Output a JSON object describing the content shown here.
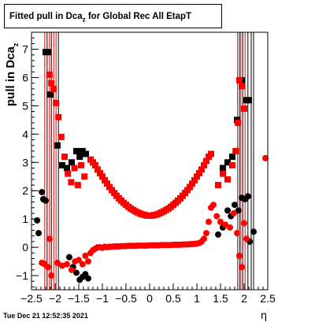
{
  "title": {
    "prefix": "Fitted pull in Dca",
    "subscript": "z",
    "suffix": " for Global Rec All EtapT"
  },
  "timestamp": "Tue Dec 21 12:52:35 2021",
  "colors": {
    "black_series": "#000000",
    "red_series": "#ff0000",
    "errorbar_red": "#ff0000",
    "errorbar_black": "#000000",
    "axis": "#000000"
  },
  "chart_data": {
    "type": "scatter",
    "title": "Fitted pull in Dca_z for Global Rec All EtapT",
    "xlabel": "η",
    "ylabel": "pull in Dca_z",
    "xlim": [
      -2.5,
      2.5
    ],
    "ylim": [
      -1.5,
      7.6
    ],
    "grid": false,
    "legend": "none",
    "x_ticks": [
      "−2.5",
      "−2",
      "−1.5",
      "−1",
      "−0.5",
      "0",
      "0.5",
      "1",
      "1.5",
      "2",
      "2.5"
    ],
    "y_ticks": [
      "−1",
      "0",
      "1",
      "2",
      "3",
      "4",
      "5",
      "6",
      "7"
    ],
    "series": [
      {
        "marker": "square",
        "color": "#000000",
        "points": [
          {
            "x": -2.2,
            "y": 6.9
          },
          {
            "x": -2.15,
            "y": 6.9
          },
          {
            "x": -2.1,
            "y": 5.4
          },
          {
            "x": -1.95,
            "y": 3.6
          },
          {
            "x": -1.85,
            "y": 2.9
          },
          {
            "x": -1.75,
            "y": 2.8
          },
          {
            "x": -1.65,
            "y": 3.0
          },
          {
            "x": -1.55,
            "y": 3.4
          },
          {
            "x": -1.48,
            "y": 3.2
          },
          {
            "x": -1.42,
            "y": 3.4
          },
          {
            "x": -1.35,
            "y": 3.3
          },
          {
            "x": 1.55,
            "y": 2.8
          },
          {
            "x": 1.65,
            "y": 3.0
          },
          {
            "x": 1.75,
            "y": 3.2
          },
          {
            "x": 1.85,
            "y": 4.5
          },
          {
            "x": 1.95,
            "y": 5.9
          },
          {
            "x": 2.05,
            "y": 5.2
          },
          {
            "x": 2.1,
            "y": 5.2
          }
        ]
      },
      {
        "marker": "square",
        "color": "#ff0000",
        "points": [
          {
            "x": -2.12,
            "y": 6.1
          },
          {
            "x": -2.08,
            "y": 5.8
          },
          {
            "x": -2.03,
            "y": 5.6
          },
          {
            "x": -1.98,
            "y": 5.1
          },
          {
            "x": -1.93,
            "y": 4.6
          },
          {
            "x": -1.87,
            "y": 3.9
          },
          {
            "x": -1.8,
            "y": 3.2
          },
          {
            "x": -1.73,
            "y": 2.6
          },
          {
            "x": -1.66,
            "y": 2.3
          },
          {
            "x": -1.59,
            "y": 2.8
          },
          {
            "x": -1.52,
            "y": 2.2
          },
          {
            "x": -1.45,
            "y": 2.9
          },
          {
            "x": -1.38,
            "y": 2.5
          },
          {
            "x": -1.25,
            "y": 3.1
          },
          {
            "x": -1.2,
            "y": 3.0
          },
          {
            "x": -1.15,
            "y": 2.9
          },
          {
            "x": -1.1,
            "y": 2.75
          },
          {
            "x": -1.05,
            "y": 2.62
          },
          {
            "x": -1.0,
            "y": 2.5
          },
          {
            "x": -0.95,
            "y": 2.37
          },
          {
            "x": -0.9,
            "y": 2.25
          },
          {
            "x": -0.85,
            "y": 2.13
          },
          {
            "x": -0.8,
            "y": 2.02
          },
          {
            "x": -0.75,
            "y": 1.92
          },
          {
            "x": -0.7,
            "y": 1.82
          },
          {
            "x": -0.65,
            "y": 1.73
          },
          {
            "x": -0.6,
            "y": 1.65
          },
          {
            "x": -0.55,
            "y": 1.57
          },
          {
            "x": -0.5,
            "y": 1.5
          },
          {
            "x": -0.45,
            "y": 1.43
          },
          {
            "x": -0.4,
            "y": 1.37
          },
          {
            "x": -0.35,
            "y": 1.32
          },
          {
            "x": -0.3,
            "y": 1.27
          },
          {
            "x": -0.25,
            "y": 1.23
          },
          {
            "x": -0.2,
            "y": 1.19
          },
          {
            "x": -0.15,
            "y": 1.16
          },
          {
            "x": -0.1,
            "y": 1.14
          },
          {
            "x": -0.05,
            "y": 1.12
          },
          {
            "x": 0.0,
            "y": 1.12
          },
          {
            "x": 0.05,
            "y": 1.12
          },
          {
            "x": 0.1,
            "y": 1.14
          },
          {
            "x": 0.15,
            "y": 1.16
          },
          {
            "x": 0.2,
            "y": 1.19
          },
          {
            "x": 0.25,
            "y": 1.23
          },
          {
            "x": 0.3,
            "y": 1.27
          },
          {
            "x": 0.35,
            "y": 1.32
          },
          {
            "x": 0.4,
            "y": 1.37
          },
          {
            "x": 0.45,
            "y": 1.43
          },
          {
            "x": 0.5,
            "y": 1.5
          },
          {
            "x": 0.55,
            "y": 1.57
          },
          {
            "x": 0.6,
            "y": 1.65
          },
          {
            "x": 0.65,
            "y": 1.73
          },
          {
            "x": 0.7,
            "y": 1.82
          },
          {
            "x": 0.75,
            "y": 1.92
          },
          {
            "x": 0.8,
            "y": 2.02
          },
          {
            "x": 0.85,
            "y": 2.13
          },
          {
            "x": 0.9,
            "y": 2.25
          },
          {
            "x": 0.95,
            "y": 2.37
          },
          {
            "x": 1.0,
            "y": 2.5
          },
          {
            "x": 1.05,
            "y": 2.62
          },
          {
            "x": 1.1,
            "y": 2.75
          },
          {
            "x": 1.15,
            "y": 2.9
          },
          {
            "x": 1.2,
            "y": 3.05
          },
          {
            "x": 1.25,
            "y": 3.2
          },
          {
            "x": 1.3,
            "y": 3.3
          },
          {
            "x": 1.45,
            "y": 2.2
          },
          {
            "x": 1.55,
            "y": 2.6
          },
          {
            "x": 1.65,
            "y": 2.4
          },
          {
            "x": 1.75,
            "y": 2.9
          },
          {
            "x": 1.82,
            "y": 3.4
          },
          {
            "x": 1.87,
            "y": 4.4
          },
          {
            "x": 1.9,
            "y": 5.9
          },
          {
            "x": 1.95,
            "y": 5.7
          },
          {
            "x": 2.0,
            "y": 4.9
          }
        ]
      },
      {
        "marker": "circle",
        "color": "#000000",
        "points": [
          {
            "x": -2.38,
            "y": 0.95
          },
          {
            "x": -2.35,
            "y": 0.5
          },
          {
            "x": -2.28,
            "y": 1.95
          },
          {
            "x": -2.25,
            "y": 1.7
          },
          {
            "x": -2.2,
            "y": 1.65
          },
          {
            "x": -1.7,
            "y": -0.35
          },
          {
            "x": -1.62,
            "y": -0.7
          },
          {
            "x": -1.55,
            "y": -0.9
          },
          {
            "x": -1.48,
            "y": -1.15
          },
          {
            "x": -1.42,
            "y": -1.05
          },
          {
            "x": -1.36,
            "y": -0.95
          },
          {
            "x": -1.3,
            "y": -1.1
          },
          {
            "x": 1.45,
            "y": 0.45
          },
          {
            "x": 1.55,
            "y": 0.7
          },
          {
            "x": 1.65,
            "y": 1.3
          },
          {
            "x": 1.72,
            "y": 1.1
          },
          {
            "x": 1.8,
            "y": 1.5
          },
          {
            "x": 1.88,
            "y": 1.3
          },
          {
            "x": 1.95,
            "y": 1.75
          },
          {
            "x": 2.02,
            "y": 1.7
          },
          {
            "x": 2.08,
            "y": 1.8
          },
          {
            "x": 2.12,
            "y": 0.2
          },
          {
            "x": 2.2,
            "y": 0.55
          }
        ]
      },
      {
        "marker": "circle",
        "color": "#ff0000",
        "points": [
          {
            "x": -2.28,
            "y": -0.55
          },
          {
            "x": -2.22,
            "y": -0.6
          },
          {
            "x": -2.15,
            "y": -0.7
          },
          {
            "x": -2.08,
            "y": -1.0
          },
          {
            "x": -2.12,
            "y": 0.3
          },
          {
            "x": -1.95,
            "y": -0.55
          },
          {
            "x": -1.85,
            "y": -0.65
          },
          {
            "x": -1.75,
            "y": -0.6
          },
          {
            "x": -1.65,
            "y": -0.8
          },
          {
            "x": -1.58,
            "y": -0.5
          },
          {
            "x": -1.5,
            "y": -0.45
          },
          {
            "x": -1.42,
            "y": -0.6
          },
          {
            "x": -1.36,
            "y": -0.3
          },
          {
            "x": -1.3,
            "y": -0.5
          },
          {
            "x": -1.25,
            "y": -0.2
          },
          {
            "x": -1.2,
            "y": -0.1
          },
          {
            "x": -1.15,
            "y": -0.05
          },
          {
            "x": -1.1,
            "y": 0.0
          },
          {
            "x": -1.05,
            "y": 0.0
          },
          {
            "x": -1.0,
            "y": -0.02
          },
          {
            "x": -0.95,
            "y": 0.02
          },
          {
            "x": -0.9,
            "y": 0.0
          },
          {
            "x": -0.85,
            "y": 0.02
          },
          {
            "x": -0.8,
            "y": 0.02
          },
          {
            "x": -0.75,
            "y": 0.03
          },
          {
            "x": -0.7,
            "y": 0.03
          },
          {
            "x": -0.65,
            "y": 0.03
          },
          {
            "x": -0.6,
            "y": 0.04
          },
          {
            "x": -0.55,
            "y": 0.04
          },
          {
            "x": -0.5,
            "y": 0.04
          },
          {
            "x": -0.45,
            "y": 0.05
          },
          {
            "x": -0.4,
            "y": 0.05
          },
          {
            "x": -0.35,
            "y": 0.05
          },
          {
            "x": -0.3,
            "y": 0.05
          },
          {
            "x": -0.25,
            "y": 0.06
          },
          {
            "x": -0.2,
            "y": 0.06
          },
          {
            "x": -0.15,
            "y": 0.06
          },
          {
            "x": -0.1,
            "y": 0.06
          },
          {
            "x": -0.05,
            "y": 0.06
          },
          {
            "x": 0.0,
            "y": 0.07
          },
          {
            "x": 0.05,
            "y": 0.07
          },
          {
            "x": 0.1,
            "y": 0.07
          },
          {
            "x": 0.15,
            "y": 0.07
          },
          {
            "x": 0.2,
            "y": 0.07
          },
          {
            "x": 0.25,
            "y": 0.08
          },
          {
            "x": 0.3,
            "y": 0.08
          },
          {
            "x": 0.35,
            "y": 0.08
          },
          {
            "x": 0.4,
            "y": 0.08
          },
          {
            "x": 0.45,
            "y": 0.08
          },
          {
            "x": 0.5,
            "y": 0.09
          },
          {
            "x": 0.55,
            "y": 0.09
          },
          {
            "x": 0.6,
            "y": 0.09
          },
          {
            "x": 0.65,
            "y": 0.09
          },
          {
            "x": 0.7,
            "y": 0.1
          },
          {
            "x": 0.75,
            "y": 0.1
          },
          {
            "x": 0.8,
            "y": 0.1
          },
          {
            "x": 0.85,
            "y": 0.11
          },
          {
            "x": 0.9,
            "y": 0.11
          },
          {
            "x": 0.95,
            "y": 0.12
          },
          {
            "x": 1.0,
            "y": 0.13
          },
          {
            "x": 1.05,
            "y": 0.15
          },
          {
            "x": 1.1,
            "y": 0.2
          },
          {
            "x": 1.15,
            "y": 0.3
          },
          {
            "x": 1.2,
            "y": 0.5
          },
          {
            "x": 1.25,
            "y": 0.9
          },
          {
            "x": 1.3,
            "y": 1.4
          },
          {
            "x": 1.35,
            "y": 1.5
          },
          {
            "x": 1.42,
            "y": 1.1
          },
          {
            "x": 1.5,
            "y": 0.9
          },
          {
            "x": 1.6,
            "y": 0.8
          },
          {
            "x": 1.7,
            "y": 0.7
          },
          {
            "x": 1.78,
            "y": 1.2
          },
          {
            "x": 1.85,
            "y": 0.5
          },
          {
            "x": 1.9,
            "y": -0.3
          },
          {
            "x": 1.95,
            "y": -0.7
          },
          {
            "x": 2.0,
            "y": 0.85
          },
          {
            "x": 2.05,
            "y": 0.3
          },
          {
            "x": 2.45,
            "y": 3.15
          }
        ]
      }
    ],
    "error_bars": [
      {
        "x": -2.22,
        "color": "#ff0000"
      },
      {
        "x": -2.17,
        "color": "#000000"
      },
      {
        "x": -2.12,
        "color": "#ff0000"
      },
      {
        "x": -2.08,
        "color": "#000000"
      },
      {
        "x": -2.03,
        "color": "#ff0000"
      },
      {
        "x": -1.98,
        "color": "#ff0000"
      },
      {
        "x": -1.93,
        "color": "#000000"
      },
      {
        "x": 1.86,
        "color": "#ff0000"
      },
      {
        "x": 1.9,
        "color": "#000000"
      },
      {
        "x": 1.93,
        "color": "#ff0000"
      },
      {
        "x": 1.97,
        "color": "#000000"
      },
      {
        "x": 2.02,
        "color": "#ff0000"
      },
      {
        "x": 2.08,
        "color": "#000000"
      },
      {
        "x": 2.15,
        "color": "#000000"
      },
      {
        "x": 2.2,
        "color": "#000000"
      }
    ]
  }
}
